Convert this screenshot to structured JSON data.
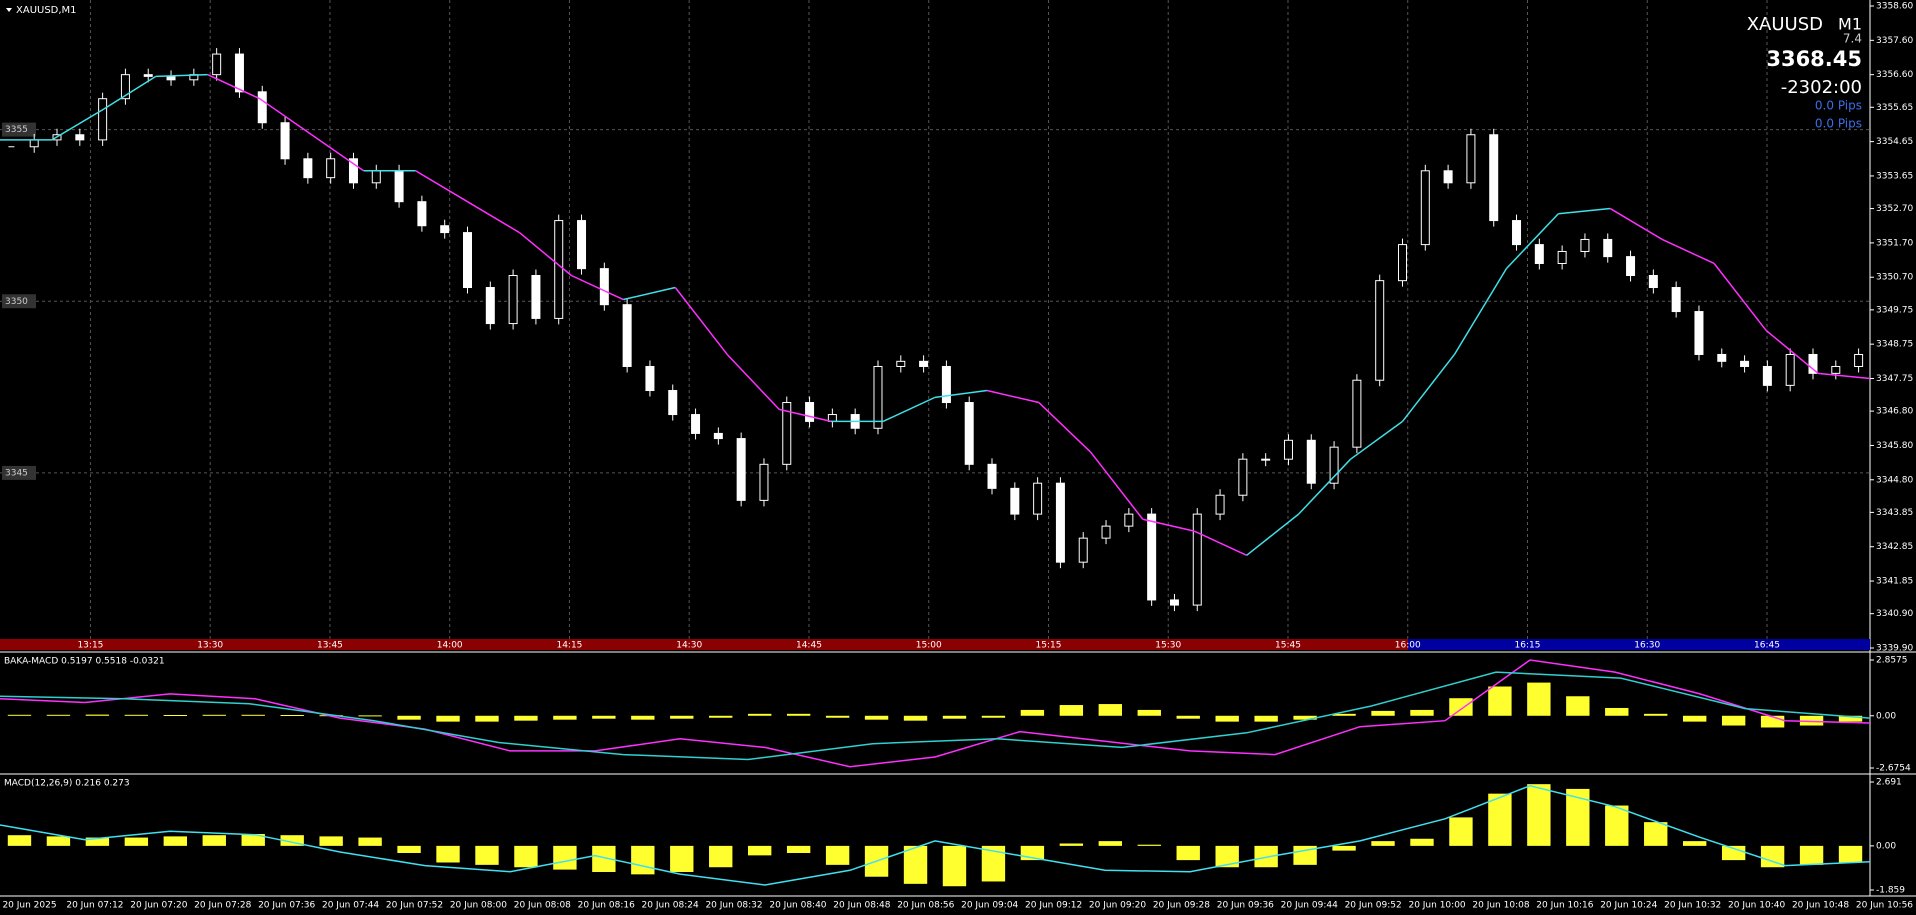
{
  "title": "XAUUSD,M1",
  "info": {
    "symbol": "XAUUSD",
    "period": "M1",
    "spread": "7.4",
    "price": "3368.45",
    "timer": "-2302:00",
    "pips": [
      "0.0 Pips",
      "0.0 Pips"
    ]
  },
  "main": {
    "ylim": [
      3339.9,
      3358.6
    ],
    "yticks": [
      {
        "value": 3358.6,
        "label": "3358.60"
      },
      {
        "value": 3357.6,
        "label": "3357.60"
      },
      {
        "value": 3356.6,
        "label": "3356.60"
      },
      3355.65,
      3354.65,
      3353.65,
      {
        "value": 3352.7,
        "label": "3352.70"
      },
      {
        "value": 3351.7,
        "label": "3351.70"
      },
      {
        "value": 3350.7,
        "label": "3350.70"
      },
      3349.75,
      3348.75,
      3347.75,
      {
        "value": 3346.8,
        "label": "3346.80"
      },
      {
        "value": 3345.8,
        "label": "3345.80"
      },
      {
        "value": 3344.8,
        "label": "3344.80"
      },
      3343.85,
      3342.85,
      3341.85,
      {
        "value": 3340.9,
        "label": "3340.90"
      },
      {
        "value": 3339.9,
        "label": "3339.90"
      }
    ],
    "levels": [
      3355,
      3350,
      3345
    ],
    "time_labels": [
      "13:15",
      "13:30",
      "13:45",
      "14:00",
      "14:15",
      "14:30",
      "14:45",
      "15:00",
      "15:15",
      "15:30",
      "15:45",
      "16:00",
      "16:15",
      "16:30",
      "16:45"
    ],
    "closes": [
      3354.5,
      3354.7,
      3354.85,
      3354.7,
      3355.9,
      3356.6,
      3356.55,
      3356.45,
      3356.6,
      3357.2,
      3356.1,
      3355.2,
      3354.15,
      3353.6,
      3354.15,
      3353.45,
      3353.8,
      3352.9,
      3352.2,
      3352.0,
      3350.4,
      3349.35,
      3350.75,
      3349.5,
      3352.35,
      3350.95,
      3349.9,
      3348.1,
      3347.4,
      3346.7,
      3346.15,
      3346.0,
      3344.2,
      3345.25,
      3347.05,
      3346.5,
      3346.7,
      3346.3,
      3348.1,
      3348.25,
      3348.1,
      3347.05,
      3345.25,
      3344.55,
      3343.8,
      3344.7,
      3342.4,
      3343.1,
      3343.45,
      3343.8,
      3341.3,
      3341.15,
      3343.8,
      3344.35,
      3345.4,
      3345.4,
      3345.95,
      3344.7,
      3345.75,
      3347.7,
      3350.6,
      3351.65,
      3353.8,
      3353.45,
      3354.85,
      3352.35,
      3351.65,
      3351.1,
      3351.45,
      3351.8,
      3351.3,
      3350.75,
      3350.4,
      3349.7,
      3348.45,
      3348.25,
      3348.1,
      3347.55,
      3348.45,
      3347.9,
      3348.1,
      3348.45
    ],
    "ma": [
      3354.7,
      3354.7,
      3355.6,
      3356.55,
      3356.6,
      3355.9,
      3354.85,
      3353.8,
      3353.8,
      3352.9,
      3352.0,
      3350.75,
      3350.05,
      3350.4,
      3348.45,
      3346.85,
      3346.5,
      3346.5,
      3347.2,
      3347.4,
      3347.05,
      3345.6,
      3343.65,
      3343.3,
      3342.6,
      3343.8,
      3345.4,
      3346.5,
      3348.45,
      3350.95,
      3352.55,
      3352.7,
      3351.8,
      3351.1,
      3349.15,
      3347.9,
      3347.75
    ],
    "ma_rise_color": "#40e0e8",
    "ma_fall_color": "#ff30ff"
  },
  "indicators": [
    {
      "label": "BAKA-MACD 0.5197 0.5518 -0.0321",
      "ylim": [
        -2.6754,
        2.8575
      ],
      "yticks": [
        2.8575,
        {
          "value": 0,
          "label": "0.00"
        },
        -2.6754
      ],
      "histogram": [
        0.05,
        0.05,
        0.06,
        0.05,
        0.04,
        0.05,
        0.05,
        0.04,
        0.03,
        0.02,
        -0.2,
        -0.3,
        -0.3,
        -0.25,
        -0.2,
        -0.15,
        -0.2,
        -0.15,
        -0.1,
        0.1,
        0.1,
        -0.1,
        -0.2,
        -0.25,
        -0.15,
        -0.1,
        0.3,
        0.55,
        0.6,
        0.3,
        -0.15,
        -0.3,
        -0.3,
        -0.2,
        0.1,
        0.25,
        0.3,
        0.9,
        1.5,
        1.7,
        1.0,
        0.4,
        0.1,
        -0.3,
        -0.5,
        -0.6,
        -0.5,
        -0.3
      ],
      "histogram_color": "#ffff30",
      "lines": [
        {
          "color": "#ff30ff",
          "values": [
            0.87,
            0.68,
            1.12,
            0.87,
            -0.12,
            -0.68,
            -1.8,
            -1.8,
            -1.18,
            -1.62,
            -2.61,
            -2.11,
            -0.81,
            -1.31,
            -1.8,
            -1.99,
            -0.56,
            -0.25,
            2.86,
            2.24,
            1.12,
            -0.25,
            -0.37
          ]
        },
        {
          "color": "#30d0d0",
          "values": [
            1.0,
            0.87,
            0.62,
            -0.25,
            -1.37,
            -1.99,
            -2.24,
            -1.43,
            -1.18,
            -1.62,
            -0.87,
            0.5,
            2.24,
            1.93,
            0.37,
            -0.12
          ]
        }
      ]
    },
    {
      "label": "MACD(12,26,9) 0.216 0.273",
      "ylim": [
        -1.859,
        2.691
      ],
      "yticks": [
        2.691,
        {
          "value": 0,
          "label": "0.00"
        },
        -1.859
      ],
      "histogram": [
        0.45,
        0.4,
        0.35,
        0.35,
        0.4,
        0.45,
        0.5,
        0.45,
        0.4,
        0.35,
        -0.3,
        -0.7,
        -0.8,
        -0.9,
        -1.0,
        -1.1,
        -1.2,
        -1.1,
        -0.9,
        -0.4,
        -0.3,
        -0.8,
        -1.3,
        -1.6,
        -1.7,
        -1.5,
        -0.6,
        0.1,
        0.2,
        0.05,
        -0.6,
        -0.9,
        -0.9,
        -0.8,
        -0.2,
        0.2,
        0.3,
        1.2,
        2.2,
        2.6,
        2.4,
        1.7,
        1.0,
        0.2,
        -0.6,
        -0.9,
        -0.8,
        -0.7
      ],
      "histogram_color": "#ffff30",
      "lines": [
        {
          "color": "#40e0f0",
          "values": [
            0.88,
            0.26,
            0.62,
            0.47,
            -0.26,
            -0.83,
            -1.09,
            -0.41,
            -1.19,
            -1.65,
            -1.03,
            0.21,
            -0.41,
            -1.03,
            -1.09,
            -0.41,
            0.21,
            1.14,
            2.53,
            1.65,
            0.36,
            -0.83,
            -0.67
          ]
        }
      ]
    }
  ],
  "date_labels": [
    "20 Jun 2025",
    "20 Jun 07:12",
    "20 Jun 07:20",
    "20 Jun 07:28",
    "20 Jun 07:36",
    "20 Jun 07:44",
    "20 Jun 07:52",
    "20 Jun 08:00",
    "20 Jun 08:08",
    "20 Jun 08:16",
    "20 Jun 08:24",
    "20 Jun 08:32",
    "20 Jun 08:40",
    "20 Jun 08:48",
    "20 Jun 08:56",
    "20 Jun 09:04",
    "20 Jun 09:12",
    "20 Jun 09:20",
    "20 Jun 09:28",
    "20 Jun 09:36",
    "20 Jun 09:44",
    "20 Jun 09:52",
    "20 Jun 10:00",
    "20 Jun 10:08",
    "20 Jun 10:16",
    "20 Jun 10:24",
    "20 Jun 10:32",
    "20 Jun 10:40",
    "20 Jun 10:48",
    "20 Jun 10:56"
  ]
}
